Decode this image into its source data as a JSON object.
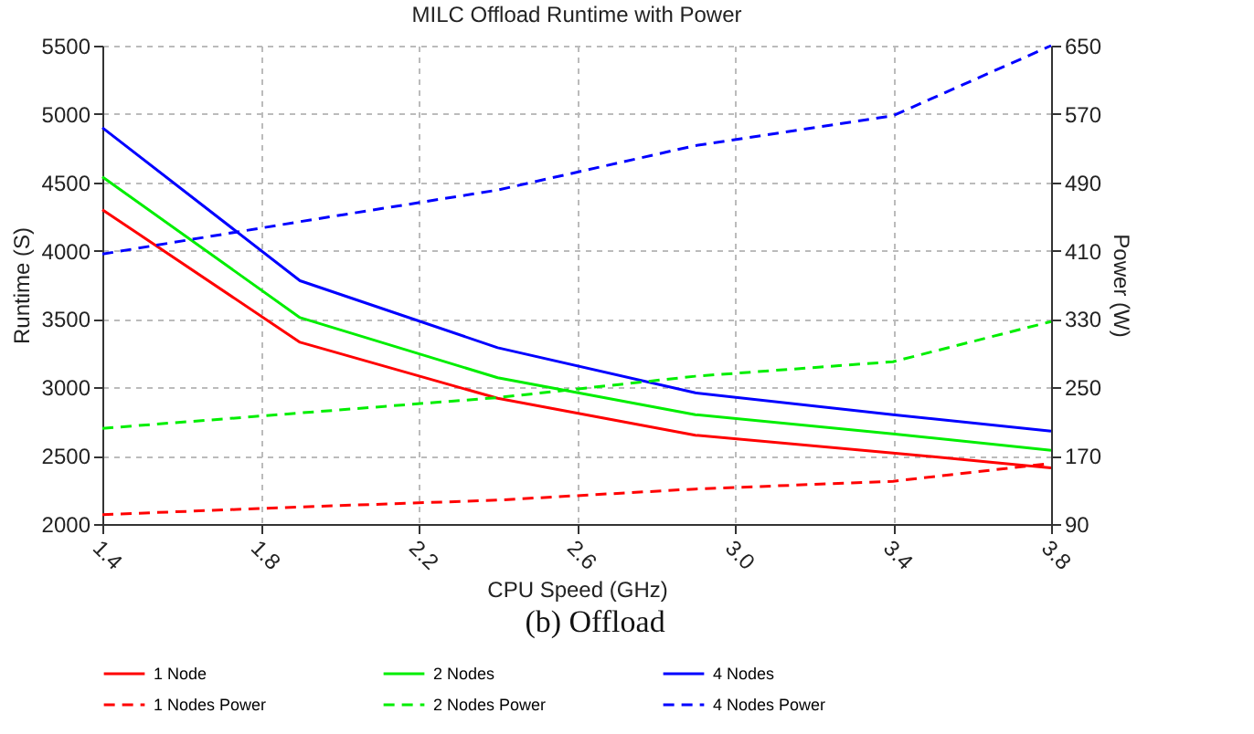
{
  "chart_data": {
    "type": "line",
    "title": "MILC Offload Runtime with Power",
    "xlabel": "CPU Speed (GHz)",
    "ylabel": "Runtime (S)",
    "y2label": "Power (W)",
    "x": [
      1.4,
      1.9,
      2.4,
      2.9,
      3.4,
      3.8
    ],
    "series": [
      {
        "name": "1 Node",
        "color": "#ff0000",
        "line_style": "solid",
        "values": [
          4300,
          3330,
          2920,
          2650,
          2520,
          2410
        ]
      },
      {
        "name": "1 Nodes Power",
        "color": "#ff0000",
        "line_style": "dashed",
        "axis": "y2",
        "values": [
          101,
          110,
          118,
          131,
          140,
          161
        ]
      },
      {
        "name": "2 Nodes",
        "color": "#00ee00",
        "line_style": "solid",
        "values": [
          4540,
          3510,
          3070,
          2800,
          2660,
          2540
        ]
      },
      {
        "name": "2 Nodes Power",
        "color": "#00ee00",
        "line_style": "dashed",
        "axis": "y2",
        "values": [
          202,
          220,
          238,
          263,
          280,
          327
        ]
      },
      {
        "name": "4 Nodes",
        "color": "#0000ff",
        "line_style": "solid",
        "values": [
          4900,
          3780,
          3290,
          2960,
          2800,
          2680
        ]
      },
      {
        "name": "4 Nodes Power",
        "color": "#0000ff",
        "line_style": "dashed",
        "axis": "y2",
        "values": [
          406,
          444,
          481,
          533,
          568,
          650
        ]
      }
    ],
    "xlim": [
      1.4,
      3.8
    ],
    "xticks": [
      1.4,
      1.8,
      2.2,
      2.6,
      {
        "value": 3.0,
        "label": "3.0"
      },
      3.4,
      3.8
    ],
    "ylim": [
      2000,
      5500
    ],
    "yticks": [
      2000,
      2500,
      3000,
      3500,
      4000,
      4500,
      5000,
      5500
    ],
    "y2lim": [
      90,
      650
    ],
    "y2ticks": [
      90,
      170,
      250,
      330,
      410,
      490,
      570,
      650
    ],
    "grid": true,
    "legend": "bottom",
    "marker": "none",
    "annotations": [
      "(b) Offload"
    ]
  }
}
